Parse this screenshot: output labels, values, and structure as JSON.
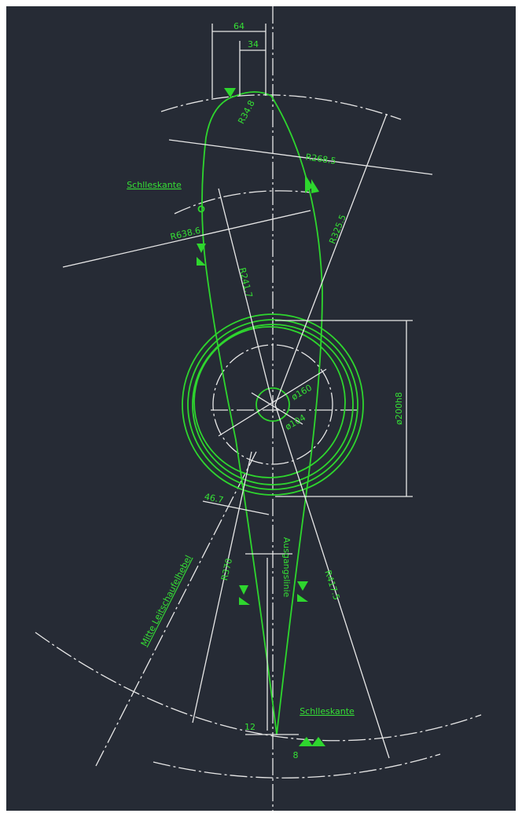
{
  "labels": {
    "dim_64": "64",
    "dim_34": "34",
    "r_tip": "R34.8",
    "r268": "R268.5",
    "edge_top": "Schlleskante",
    "r638": "R638.6",
    "r325": "R325.5",
    "r241": "R241.7",
    "d160": "ø160",
    "d104": "ø104",
    "d200": "ø200h8",
    "dim_small": "46.7",
    "r370": "R370",
    "baseline": "Ausgangslinie",
    "r417": "R417.5",
    "lever": "Mitte Leitschaufelhebel",
    "edge_bottom": "Schlleskante",
    "dim_12": "12",
    "dim_8": "8"
  }
}
